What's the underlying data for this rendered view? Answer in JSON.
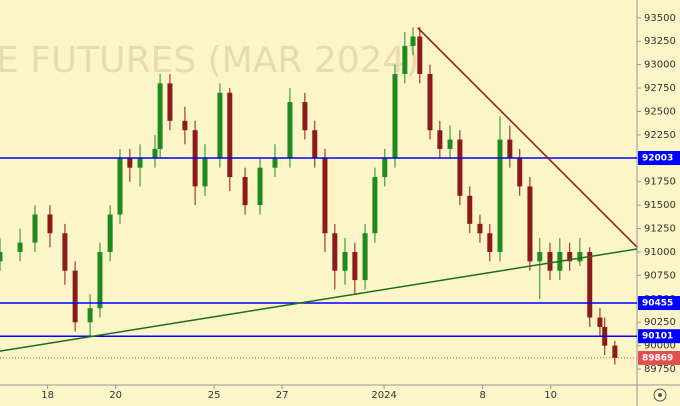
{
  "chart_data": {
    "type": "candlestick",
    "watermark": "E FUTURES (MAR 2024)",
    "xlim": [
      0,
      18.74
    ],
    "xticks": [
      {
        "value": 1.4,
        "label": "18"
      },
      {
        "value": 3.4,
        "label": "20"
      },
      {
        "value": 6.3,
        "label": "25"
      },
      {
        "value": 8.3,
        "label": "27"
      },
      {
        "value": 11.3,
        "label": "2024"
      },
      {
        "value": 14.2,
        "label": "8"
      },
      {
        "value": 16.2,
        "label": "10"
      }
    ],
    "ylim": [
      89580,
      93690
    ],
    "yticks": [
      89750,
      90000,
      90250,
      90500,
      90750,
      91000,
      91250,
      91500,
      91750,
      92000,
      92250,
      92500,
      92750,
      93000,
      93250,
      93500
    ],
    "up_color": "#1f8a1f",
    "down_color": "#8b1a1a",
    "x": [
      0,
      0.59,
      1.03,
      1.47,
      1.91,
      2.21,
      2.65,
      2.94,
      3.24,
      3.53,
      3.82,
      4.12,
      4.56,
      4.71,
      5.0,
      5.44,
      5.74,
      6.03,
      6.47,
      6.76,
      7.21,
      7.65,
      8.09,
      8.53,
      8.97,
      9.26,
      9.56,
      9.85,
      10.15,
      10.44,
      10.74,
      11.03,
      11.32,
      11.62,
      11.91,
      12.15,
      12.35,
      12.65,
      12.94,
      13.24,
      13.53,
      13.82,
      14.12,
      14.41,
      14.71,
      15.0,
      15.29,
      15.59,
      15.88,
      16.18,
      16.47,
      16.76,
      17.06,
      17.35,
      17.65,
      17.79,
      18.09
    ],
    "open": [
      90900,
      91000,
      91100,
      91400,
      91200,
      90800,
      90250,
      90400,
      91000,
      91400,
      92000,
      91900,
      92000,
      92100,
      92800,
      92400,
      92300,
      91700,
      92000,
      92700,
      91800,
      91500,
      91900,
      92000,
      92600,
      92300,
      92000,
      91200,
      90800,
      91000,
      90700,
      91200,
      91800,
      92000,
      92900,
      93200,
      93300,
      92900,
      92300,
      92100,
      92200,
      91600,
      91300,
      91200,
      91000,
      92200,
      92000,
      91700,
      90900,
      91000,
      90800,
      91000,
      90900,
      91000,
      90300,
      90200,
      90000
    ],
    "high": [
      91150,
      91250,
      91500,
      91500,
      91300,
      90900,
      90550,
      91100,
      91500,
      92100,
      92100,
      92150,
      92250,
      92900,
      92900,
      92550,
      92400,
      92150,
      92800,
      92750,
      91900,
      92000,
      92150,
      92750,
      92700,
      92400,
      92100,
      91300,
      91150,
      91100,
      91300,
      91900,
      92100,
      93000,
      93350,
      93400,
      93400,
      93000,
      92400,
      92350,
      92300,
      91700,
      91400,
      91300,
      92450,
      92350,
      92100,
      91800,
      91150,
      91100,
      91150,
      91100,
      91150,
      91050,
      90400,
      90300,
      90050
    ],
    "low": [
      90800,
      90900,
      91000,
      91050,
      90650,
      90150,
      90100,
      90300,
      90900,
      91300,
      91750,
      91700,
      91900,
      92000,
      92300,
      92150,
      91500,
      91600,
      91900,
      91650,
      91400,
      91400,
      91800,
      91900,
      92200,
      91900,
      91000,
      90600,
      90650,
      90550,
      90600,
      91100,
      91700,
      91900,
      92800,
      93100,
      92800,
      92200,
      92000,
      92000,
      91500,
      91200,
      91100,
      90900,
      90900,
      91900,
      91600,
      90800,
      90500,
      90700,
      90700,
      90800,
      90850,
      90200,
      90100,
      89900,
      89800
    ],
    "close": [
      91000,
      91100,
      91400,
      91200,
      90800,
      90250,
      90400,
      91000,
      91400,
      92000,
      91900,
      92000,
      92100,
      92800,
      92400,
      92300,
      91700,
      92000,
      92700,
      91800,
      91500,
      91900,
      92000,
      92600,
      92300,
      92000,
      91200,
      90800,
      91000,
      90700,
      91200,
      91800,
      92000,
      92900,
      93200,
      93300,
      92900,
      92300,
      92100,
      92200,
      91600,
      91300,
      91200,
      91000,
      92200,
      92000,
      91700,
      90900,
      91000,
      90800,
      91000,
      90900,
      91000,
      90300,
      90200,
      90000,
      89869
    ],
    "levels": [
      {
        "value": 92003,
        "color": "#0000ff"
      },
      {
        "value": 90455,
        "color": "#0000ff"
      },
      {
        "value": 90101,
        "color": "#0000ff"
      }
    ],
    "last_price": {
      "value": 89869,
      "color": "#e05050"
    },
    "trendlines": [
      {
        "x": [
          12.29,
          18.74
        ],
        "y": [
          93393,
          91053
        ],
        "color": "#8b1a1a"
      },
      {
        "x": [
          0,
          18.74
        ],
        "y": [
          89942,
          91032
        ],
        "color": "#1e6b1e"
      }
    ]
  }
}
